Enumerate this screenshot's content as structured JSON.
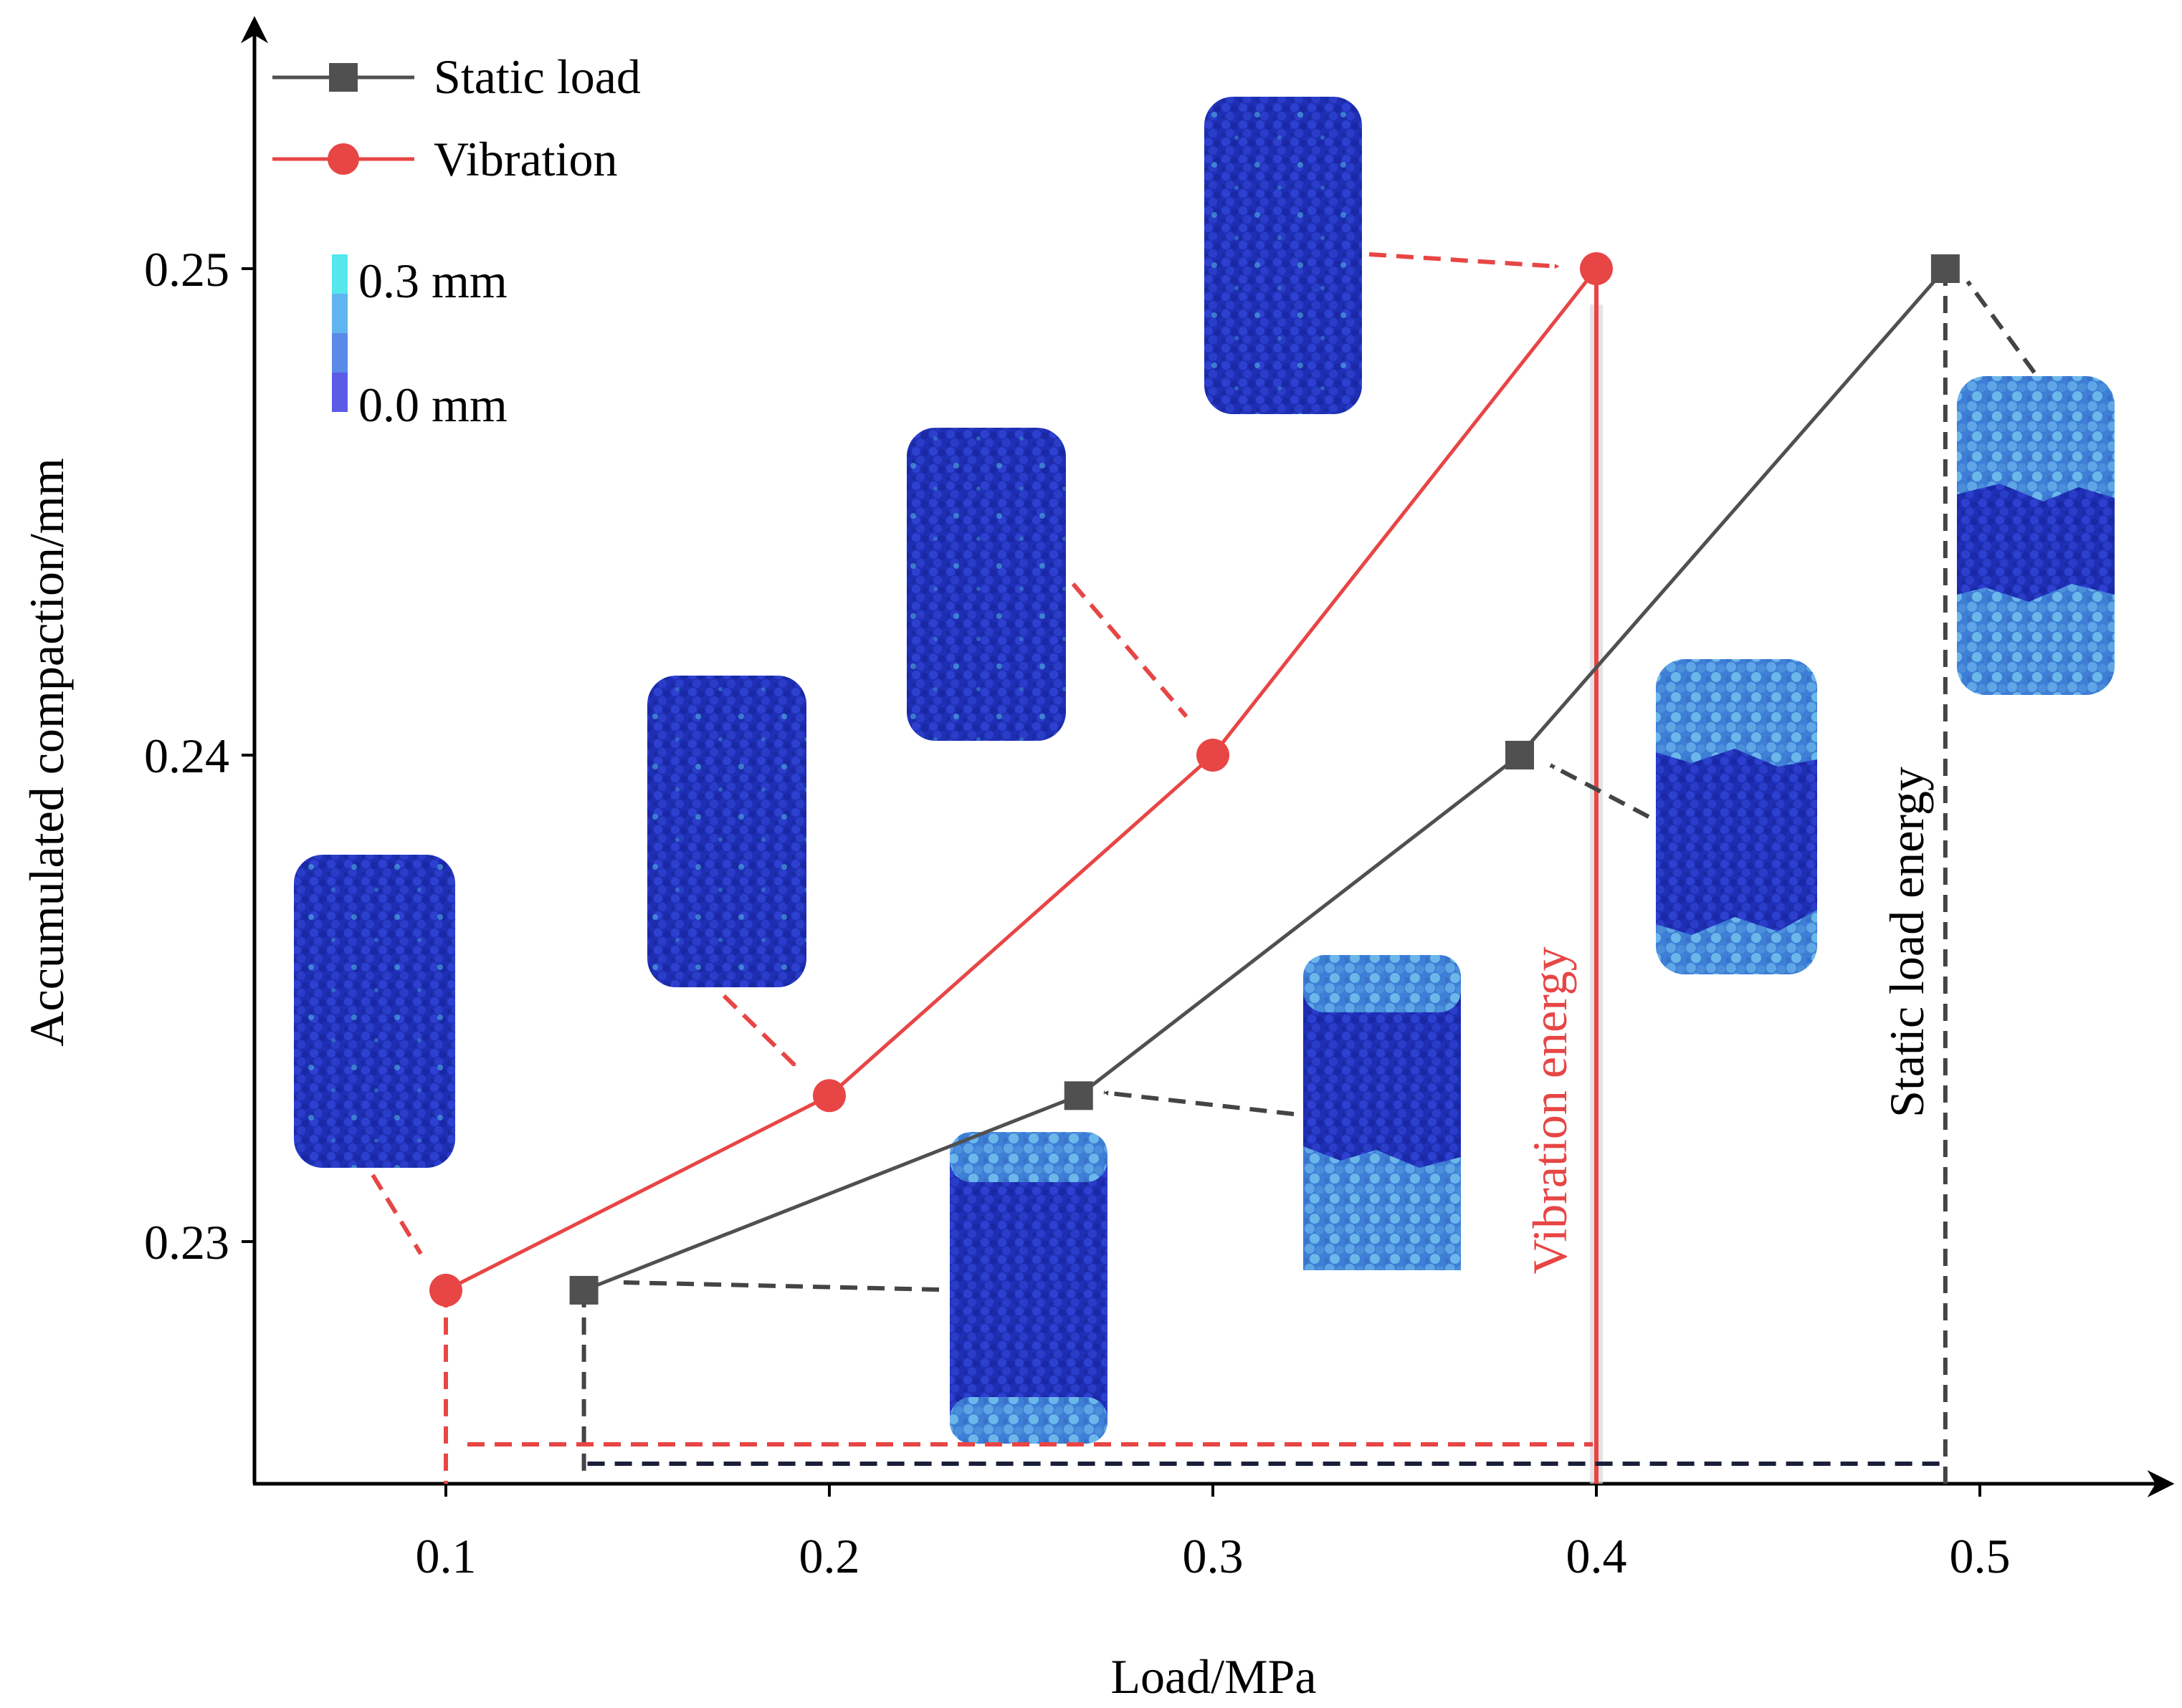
{
  "chart_data": {
    "type": "line",
    "xlabel": "Load/MPa",
    "ylabel": "Accumulated compaction/mm",
    "xlim": [
      0.05,
      0.53
    ],
    "ylim": [
      0.2249,
      0.2535
    ],
    "x_ticks": [
      "0.1",
      "0.2",
      "0.3",
      "0.4",
      "0.5"
    ],
    "y_ticks": [
      "0.23",
      "0.24",
      "0.25"
    ],
    "legend_position": "top-left",
    "series": [
      {
        "name": "Static load",
        "marker": "square",
        "color": "#505050",
        "x": [
          0.136,
          0.265,
          0.38,
          0.491
        ],
        "y": [
          0.229,
          0.233,
          0.24,
          0.25
        ]
      },
      {
        "name": "Vibration",
        "marker": "circle",
        "color": "#e84545",
        "x": [
          0.1,
          0.2,
          0.3,
          0.4
        ],
        "y": [
          0.229,
          0.233,
          0.24,
          0.25
        ]
      }
    ],
    "colorbar": {
      "max_label": "0.3 mm",
      "min_label": "0.0 mm",
      "colors": [
        "#5b5be6",
        "#5a8ae8",
        "#5fb5ef",
        "#55e7ee"
      ]
    },
    "annotations": {
      "vibration_energy": "Vibration energy",
      "static_energy": "Static load energy"
    },
    "energy_span": {
      "vibration": [
        0.1,
        0.4
      ],
      "static": [
        0.136,
        0.491
      ]
    }
  }
}
